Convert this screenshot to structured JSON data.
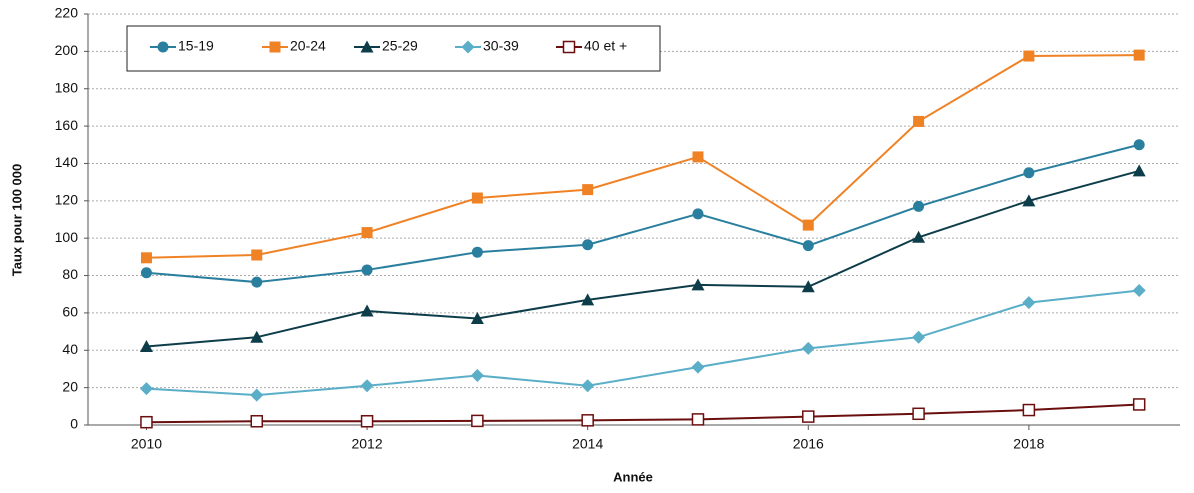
{
  "chart_data": {
    "type": "line",
    "x_label": "Année",
    "y_label": "Taux pour 100 000",
    "x": [
      2010,
      2011,
      2012,
      2013,
      2014,
      2015,
      2016,
      2017,
      2018,
      2019
    ],
    "series": [
      {
        "name": "15-19",
        "color": "#2a7f9e",
        "marker": "circle",
        "values": [
          81.5,
          76.5,
          83,
          92.5,
          96.5,
          113,
          96,
          117,
          135,
          150
        ]
      },
      {
        "name": "20-24",
        "color": "#f08226",
        "marker": "square",
        "values": [
          89.5,
          91,
          103,
          121.5,
          126,
          143.5,
          107,
          162.5,
          197.5,
          198
        ]
      },
      {
        "name": "25-29",
        "color": "#0e3d4a",
        "marker": "triangle",
        "values": [
          42,
          47,
          61,
          57,
          67,
          75,
          74,
          100.5,
          120,
          136
        ]
      },
      {
        "name": "30-39",
        "color": "#5aaec7",
        "marker": "diamond",
        "values": [
          19.5,
          16,
          21,
          26.5,
          21,
          31,
          41,
          47,
          65.5,
          72
        ]
      },
      {
        "name": "40 et +",
        "color": "#6b0e0e",
        "marker": "open-square",
        "values": [
          1.5,
          2,
          2,
          2.2,
          2.5,
          3,
          4.5,
          6,
          8,
          11
        ]
      }
    ],
    "xlim": [
      2009.47,
      2019.37
    ],
    "xticks": [
      2010,
      2012,
      2014,
      2016,
      2018
    ],
    "ylim": [
      0,
      220
    ],
    "yticks": [
      0,
      20,
      40,
      60,
      80,
      100,
      120,
      140,
      160,
      180,
      200,
      220
    ],
    "grid": true,
    "legend": "top-left"
  }
}
